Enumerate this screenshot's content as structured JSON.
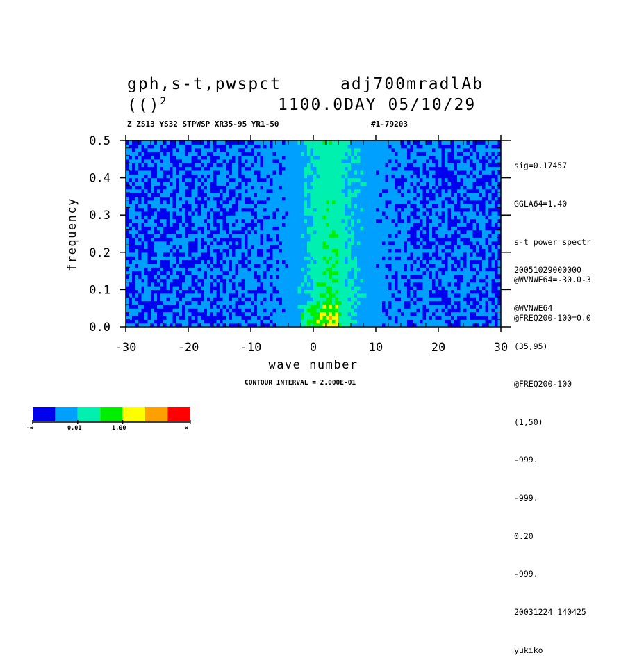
{
  "header": {
    "title_line1_left": "gph,s-t,pwspct",
    "title_line1_right": "adj700mradlAb",
    "title_line2_left": "(()",
    "title_line2_sup": "2",
    "title_line2_right": "1100.0DAY 05/10/29",
    "subtitle_left": "Z ZS13 YS32 STPWSP XR35-95 YR1-50",
    "subtitle_right": "#1-79203"
  },
  "side_info_top": [
    "sig=0.17457",
    "GGLA64=1.40",
    "s-t power spectr",
    "@WVNWE64=-30.0-3",
    "@FREQ200-100=0.0"
  ],
  "side_info_bottom": [
    "20051029000000",
    "@WVNWE64",
    "(35,95)",
    "@FREQ200-100",
    "(1,50)",
    "-999.",
    "-999.",
    "0.20",
    "-999.",
    "20031224 140425",
    "yukiko"
  ],
  "contour_interval": "CONTOUR INTERVAL = 2.000E-01",
  "colorbar": {
    "colors": [
      "#0000ee",
      "#00a0ff",
      "#00f0b0",
      "#00ee00",
      "#ffff00",
      "#ffa000",
      "#ff0000"
    ],
    "labels": [
      "-∞",
      "0.01",
      "1.00",
      "∞"
    ]
  },
  "chart_data": {
    "type": "heatmap",
    "xlabel": "wave number",
    "ylabel": "frequency",
    "xlim": [
      -30,
      30
    ],
    "ylim": [
      0.0,
      0.5
    ],
    "x_ticks": [
      -30,
      -20,
      -10,
      0,
      10,
      20,
      30
    ],
    "y_ticks": [
      0.0,
      0.1,
      0.2,
      0.3,
      0.4,
      0.5
    ],
    "x_tick_labels": [
      "-30",
      "-20",
      "-10",
      "0",
      "10",
      "20",
      "30"
    ],
    "y_tick_labels": [
      "0.0",
      "0.1",
      "0.2",
      "0.3",
      "0.4",
      "0.5"
    ],
    "levels": [
      {
        "color_index": 0,
        "description": "lowest power"
      },
      {
        "color_index": 1,
        "description": "background power"
      },
      {
        "color_index": 2,
        "description": "enhanced power near small wave numbers"
      },
      {
        "color_index": 3,
        "description": "strong power near wave number 0-5"
      },
      {
        "color_index": 4,
        "description": "peak power at low frequency"
      },
      {
        "color_index": 5,
        "description": "maximum"
      }
    ],
    "ridge": {
      "wave_number_center": 3,
      "peak_frequency": 0.03
    }
  }
}
